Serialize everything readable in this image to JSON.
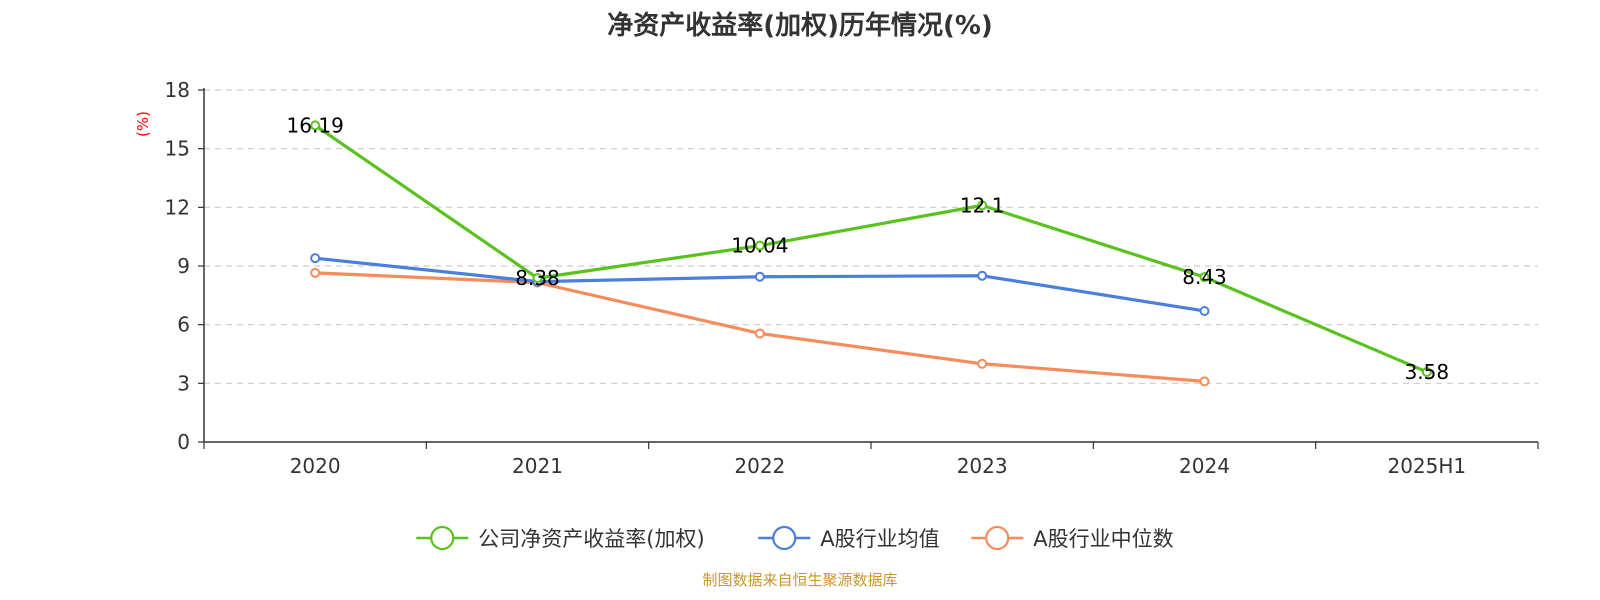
{
  "chart_data": {
    "type": "line",
    "title": "净资产收益率(加权)历年情况(%)",
    "ylabel": "(%)",
    "categories": [
      "2020",
      "2021",
      "2022",
      "2023",
      "2024",
      "2025H1"
    ],
    "ylim": [
      0,
      18
    ],
    "yticks": [
      0,
      3,
      6,
      9,
      12,
      15,
      18
    ],
    "grid": true,
    "legend_position": "bottom",
    "series": [
      {
        "name": "公司净资产收益率(加权)",
        "color": "#5ac21f",
        "values": [
          16.19,
          8.38,
          10.04,
          12.1,
          8.43,
          3.58
        ],
        "labels": [
          "16.19",
          "8.38",
          "10.04",
          "12.1",
          "8.43",
          "3.58"
        ]
      },
      {
        "name": "A股行业均值",
        "color": "#4a7fdc",
        "values": [
          9.4,
          8.2,
          8.45,
          8.5,
          6.7,
          null
        ]
      },
      {
        "name": "A股行业中位数",
        "color": "#f68b5c",
        "values": [
          8.65,
          8.15,
          5.55,
          4.0,
          3.1,
          null
        ]
      }
    ]
  },
  "source": "制图数据来自恒生聚源数据库"
}
